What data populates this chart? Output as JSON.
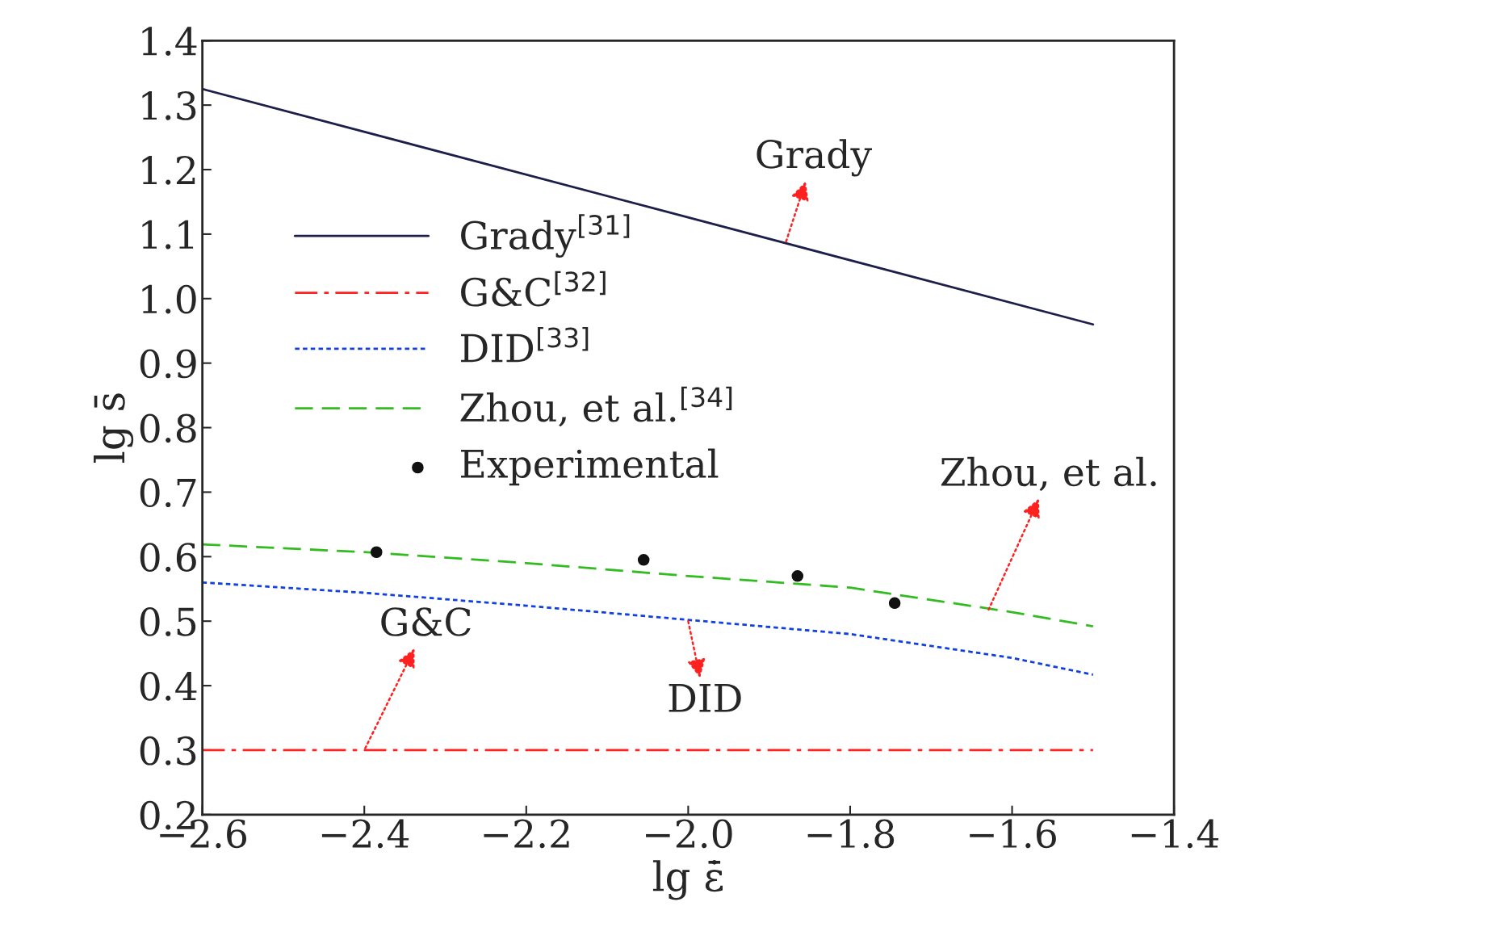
{
  "chart_data": {
    "type": "line",
    "xlabel": "lg ε̇̄",
    "ylabel": "lg s̄",
    "xlim": [
      -2.6,
      -1.4
    ],
    "ylim": [
      0.2,
      1.4
    ],
    "xticks": [
      {
        "value": -2.6,
        "label": "−2.6"
      },
      {
        "value": -2.4,
        "label": "−2.4"
      },
      {
        "value": -2.2,
        "label": "−2.2"
      },
      {
        "value": -2.0,
        "label": "−2.0"
      },
      {
        "value": -1.8,
        "label": "−1.8"
      },
      {
        "value": -1.6,
        "label": "−1.6"
      },
      {
        "value": -1.4,
        "label": "−1.4"
      }
    ],
    "yticks": [
      {
        "value": 0.2,
        "label": "0.2"
      },
      {
        "value": 0.3,
        "label": "0.3"
      },
      {
        "value": 0.4,
        "label": "0.4"
      },
      {
        "value": 0.5,
        "label": "0.5"
      },
      {
        "value": 0.6,
        "label": "0.6"
      },
      {
        "value": 0.7,
        "label": "0.7"
      },
      {
        "value": 0.8,
        "label": "0.8"
      },
      {
        "value": 0.9,
        "label": "0.9"
      },
      {
        "value": 1.0,
        "label": "1.0"
      },
      {
        "value": 1.1,
        "label": "1.1"
      },
      {
        "value": 1.2,
        "label": "1.2"
      },
      {
        "value": 1.3,
        "label": "1.3"
      },
      {
        "value": 1.4,
        "label": "1.4"
      }
    ],
    "grid": false,
    "legend": "top left",
    "series": [
      {
        "name": "Grady$^{[31]}$",
        "color": "#1b1f4a",
        "line_style": "solid",
        "x": [
          -2.6,
          -1.5
        ],
        "values": [
          1.325,
          0.96
        ]
      },
      {
        "name": "G&C$^{[32]}$",
        "color": "#ff2020",
        "line_style": "dashdot",
        "x": [
          -2.6,
          -1.5
        ],
        "values": [
          0.3,
          0.3
        ]
      },
      {
        "name": "DID$^{[33]}$",
        "color": "#1040e0",
        "line_style": "dotted",
        "x": [
          -2.6,
          -2.4,
          -2.2,
          -2.0,
          -1.8,
          -1.6,
          -1.5
        ],
        "values": [
          0.56,
          0.544,
          0.524,
          0.502,
          0.48,
          0.443,
          0.417
        ]
      },
      {
        "name": "Zhou, et al.$^{[34]}$",
        "color": "#33bb22",
        "line_style": "dashed",
        "x": [
          -2.6,
          -2.4,
          -2.2,
          -2.0,
          -1.8,
          -1.6,
          -1.5
        ],
        "values": [
          0.619,
          0.607,
          0.59,
          0.57,
          0.552,
          0.514,
          0.492
        ]
      },
      {
        "name": "Experimental",
        "type": "scatter",
        "color": "#111111",
        "marker": "circle",
        "x": [
          -2.385,
          -2.055,
          -1.865,
          -1.745
        ],
        "values": [
          0.607,
          0.595,
          0.57,
          0.528
        ]
      }
    ],
    "annotations": [
      {
        "text": "Grady",
        "x": -1.88,
        "y": 1.085
      },
      {
        "text": "G&C",
        "x": -2.4,
        "y": 0.3
      },
      {
        "text": "DID",
        "x": -2.0,
        "y": 0.5
      },
      {
        "text": "Zhou, et al.",
        "x": -1.63,
        "y": 0.515
      }
    ]
  }
}
